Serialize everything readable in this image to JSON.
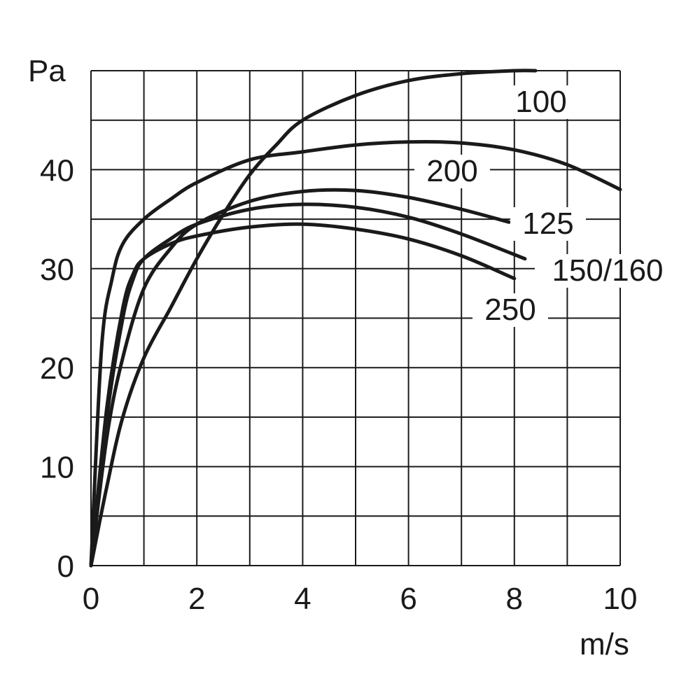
{
  "chart_data": {
    "type": "line",
    "title": "",
    "xlabel": "m/s",
    "ylabel": "Pa",
    "xlim": [
      0,
      10
    ],
    "ylim": [
      0,
      50
    ],
    "grid": true,
    "x_ticks": [
      0,
      2,
      4,
      6,
      8,
      10
    ],
    "x_tick_labels": [
      "0",
      "2",
      "4",
      "6",
      "8",
      "10"
    ],
    "y_ticks": [
      0,
      10,
      20,
      30,
      40
    ],
    "y_tick_labels": [
      "0",
      "10",
      "20",
      "30",
      "40"
    ],
    "grid_x_step": 1,
    "grid_y_step": 5,
    "line_color": "#1a1a1a",
    "series": [
      {
        "name": "100",
        "x": [
          0,
          0.3,
          0.6,
          1.0,
          1.5,
          2.0,
          2.5,
          3.0,
          3.5,
          4.0,
          5.0,
          6.0,
          7.0,
          8.0,
          8.4
        ],
        "y": [
          0,
          8,
          15,
          21,
          26,
          31,
          35.5,
          39.5,
          42.5,
          45,
          47.5,
          49,
          49.7,
          50,
          50
        ]
      },
      {
        "name": "200",
        "x": [
          0,
          0.2,
          0.4,
          0.6,
          1.0,
          1.5,
          2.0,
          3.0,
          4.0,
          5.0,
          6.0,
          7.0,
          8.0,
          9.0,
          10.0
        ],
        "y": [
          0,
          22,
          29,
          32.5,
          35,
          37,
          38.7,
          41,
          41.8,
          42.5,
          42.8,
          42.7,
          42,
          40.5,
          38
        ]
      },
      {
        "name": "125",
        "x": [
          0,
          0.3,
          0.6,
          1.0,
          1.5,
          2.0,
          3.0,
          4.0,
          5.0,
          6.0,
          7.0,
          7.9
        ],
        "y": [
          0,
          13,
          21,
          28,
          32,
          34.5,
          36.8,
          37.8,
          37.9,
          37.2,
          36,
          34.7
        ]
      },
      {
        "name": "150/160",
        "x": [
          0,
          0.3,
          0.6,
          0.8,
          1.0,
          1.5,
          2.0,
          3.0,
          4.0,
          5.0,
          6.0,
          7.0,
          8.2
        ],
        "y": [
          0,
          15,
          25,
          29,
          31,
          33,
          34.5,
          36,
          36.5,
          36.2,
          35.2,
          33.5,
          31
        ]
      },
      {
        "name": "250",
        "x": [
          0,
          0.3,
          0.6,
          0.8,
          1.0,
          1.5,
          2.0,
          3.0,
          4.0,
          5.0,
          6.0,
          7.0,
          8.0
        ],
        "y": [
          0,
          16,
          26,
          29.5,
          31,
          32.5,
          33.3,
          34.2,
          34.5,
          34,
          33,
          31.3,
          29
        ]
      }
    ]
  }
}
